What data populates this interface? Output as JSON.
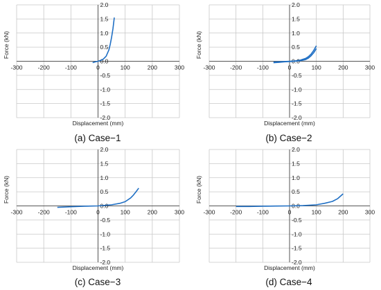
{
  "chart_data": [
    {
      "type": "line",
      "caption": "(a) Case−1",
      "xlabel": "Displacement (mm)",
      "ylabel": "Force (kN)",
      "xlim": [
        -300,
        300
      ],
      "ylim": [
        -2.0,
        2.0
      ],
      "xticks": [
        "-300",
        "-200",
        "-100",
        "0",
        "100",
        "200",
        "300"
      ],
      "yticks": [
        "2.0",
        "1.5",
        "1.0",
        "0.5",
        "0.0",
        "-0.5",
        "-1.0",
        "-1.5",
        "-2.0"
      ],
      "grid": true,
      "series": [
        {
          "x": [
            -20,
            -10,
            0,
            10,
            20,
            30,
            40,
            45,
            50,
            55,
            60
          ],
          "y": [
            -0.05,
            -0.02,
            0.0,
            0.03,
            0.08,
            0.18,
            0.4,
            0.6,
            0.85,
            1.15,
            1.55
          ]
        }
      ]
    },
    {
      "type": "line",
      "caption": "(b) Case−2",
      "xlabel": "Displacement (mm)",
      "ylabel": "Force (kN)",
      "xlim": [
        -300,
        300
      ],
      "ylim": [
        -2.0,
        2.0
      ],
      "xticks": [
        "-300",
        "-200",
        "-100",
        "0",
        "100",
        "200",
        "300"
      ],
      "yticks": [
        "2.0",
        "1.5",
        "1.0",
        "0.5",
        "0.0",
        "-0.5",
        "-1.0",
        "-1.5",
        "-2.0"
      ],
      "grid": true,
      "series": [
        {
          "x": [
            -60,
            -40,
            -20,
            0,
            20,
            40,
            60,
            70,
            80,
            90,
            100
          ],
          "y": [
            -0.03,
            -0.02,
            -0.01,
            0.0,
            0.01,
            0.04,
            0.1,
            0.16,
            0.25,
            0.38,
            0.55
          ]
        },
        {
          "x": [
            -60,
            -40,
            -20,
            0,
            20,
            40,
            60,
            70,
            80,
            90,
            100
          ],
          "y": [
            -0.05,
            -0.04,
            -0.02,
            -0.01,
            0.0,
            0.02,
            0.06,
            0.11,
            0.19,
            0.3,
            0.45
          ]
        }
      ]
    },
    {
      "type": "line",
      "caption": "(c) Case−3",
      "xlabel": "Displacement (mm)",
      "ylabel": "Force (kN)",
      "xlim": [
        -300,
        300
      ],
      "ylim": [
        -2.0,
        2.0
      ],
      "xticks": [
        "-300",
        "-200",
        "-100",
        "0",
        "100",
        "200",
        "300"
      ],
      "yticks": [
        "2.0",
        "1.5",
        "1.0",
        "0.5",
        "0.0",
        "-0.5",
        "-1.0",
        "-1.5",
        "-2.0"
      ],
      "grid": true,
      "series": [
        {
          "x": [
            -150,
            -100,
            -50,
            0,
            50,
            80,
            100,
            120,
            130,
            140,
            150
          ],
          "y": [
            -0.05,
            -0.03,
            -0.01,
            0.0,
            0.04,
            0.09,
            0.15,
            0.28,
            0.38,
            0.5,
            0.63
          ]
        }
      ]
    },
    {
      "type": "line",
      "caption": "(d) Case−4",
      "xlabel": "Displacement (mm)",
      "ylabel": "Force (kN)",
      "xlim": [
        -300,
        300
      ],
      "ylim": [
        -2.0,
        2.0
      ],
      "xticks": [
        "-300",
        "-200",
        "-100",
        "0",
        "100",
        "200",
        "300"
      ],
      "yticks": [
        "2.0",
        "1.5",
        "1.0",
        "0.5",
        "0.0",
        "-0.5",
        "-1.0",
        "-1.5",
        "-2.0"
      ],
      "grid": true,
      "series": [
        {
          "x": [
            -200,
            -150,
            -100,
            -50,
            0,
            50,
            100,
            130,
            160,
            180,
            200
          ],
          "y": [
            -0.02,
            -0.02,
            -0.01,
            -0.005,
            0.0,
            0.01,
            0.04,
            0.09,
            0.16,
            0.26,
            0.43
          ]
        }
      ]
    }
  ],
  "colors": {
    "series_line": "#1f6fc4",
    "grid": "#c8c8c8",
    "axis": "#555555"
  }
}
